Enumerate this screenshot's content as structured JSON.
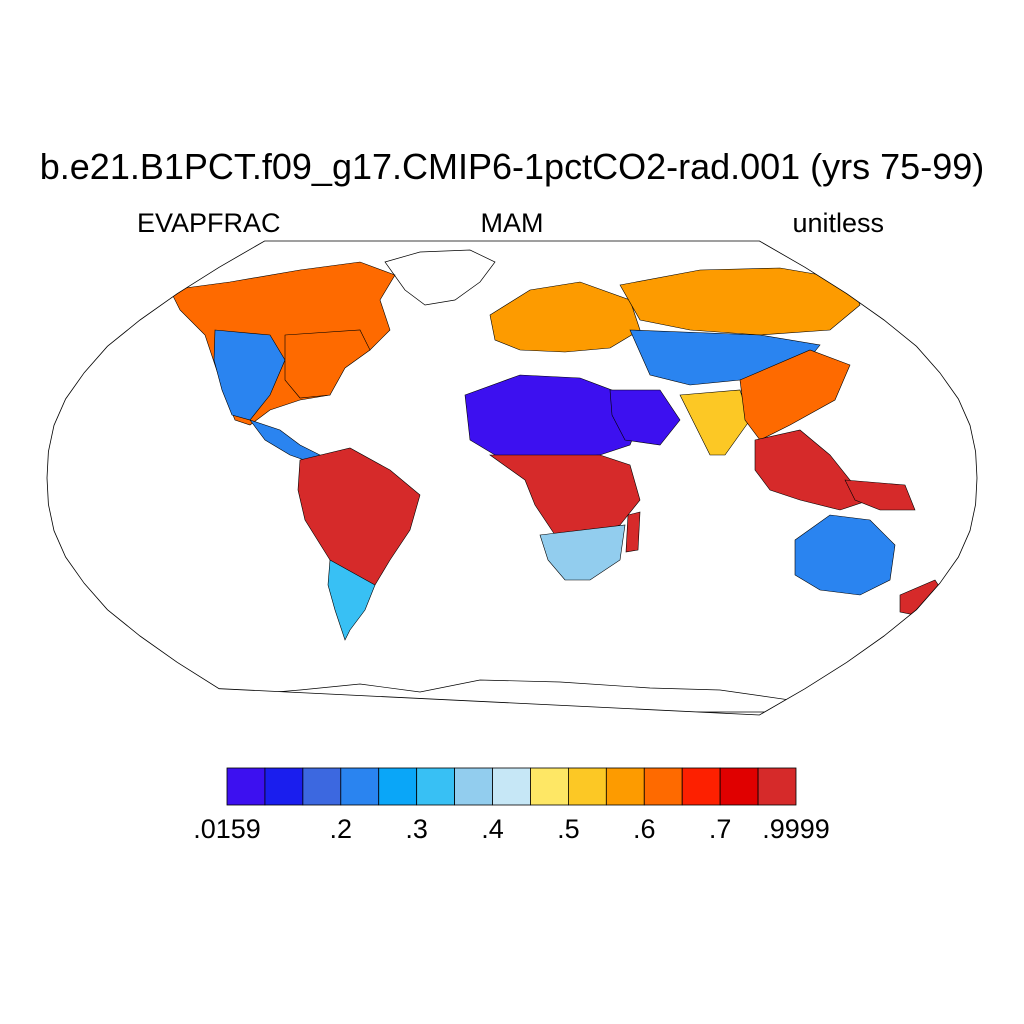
{
  "title": "b.e21.B1PCT.f09_g17.CMIP6-1pctCO2-rad.001 (yrs 75-99)",
  "subtitle_left": "EVAPFRAC",
  "subtitle_center": "MAM",
  "subtitle_right": "unitless",
  "colorbar": {
    "colors": [
      "#3d10f0",
      "#1a1eee",
      "#3c68e0",
      "#2a84f0",
      "#0aa6f8",
      "#38c0f4",
      "#92cdee",
      "#c6e7f6",
      "#fee765",
      "#fcc825",
      "#fd9b00",
      "#fe6a00",
      "#fd2000",
      "#e00000",
      "#d62a2a"
    ],
    "labels": [
      ".0159",
      ".2",
      ".3",
      ".4",
      ".5",
      ".6",
      ".7",
      ".9999"
    ]
  },
  "map_data": {
    "projection": "Robinson",
    "variable": "EVAPFRAC",
    "season": "MAM",
    "region_levels": {
      "sahara": 0,
      "arabia": 0,
      "australia_interior": 3,
      "amazon": 14,
      "central_africa": 14,
      "indonesia": 14,
      "canada": 11,
      "siberia": 10,
      "europe": 10,
      "central_asia": 3,
      "usa_west": 3,
      "usa_east": 11,
      "india": 9,
      "china": 11,
      "southern_africa": 6,
      "patagonia": 5
    }
  }
}
